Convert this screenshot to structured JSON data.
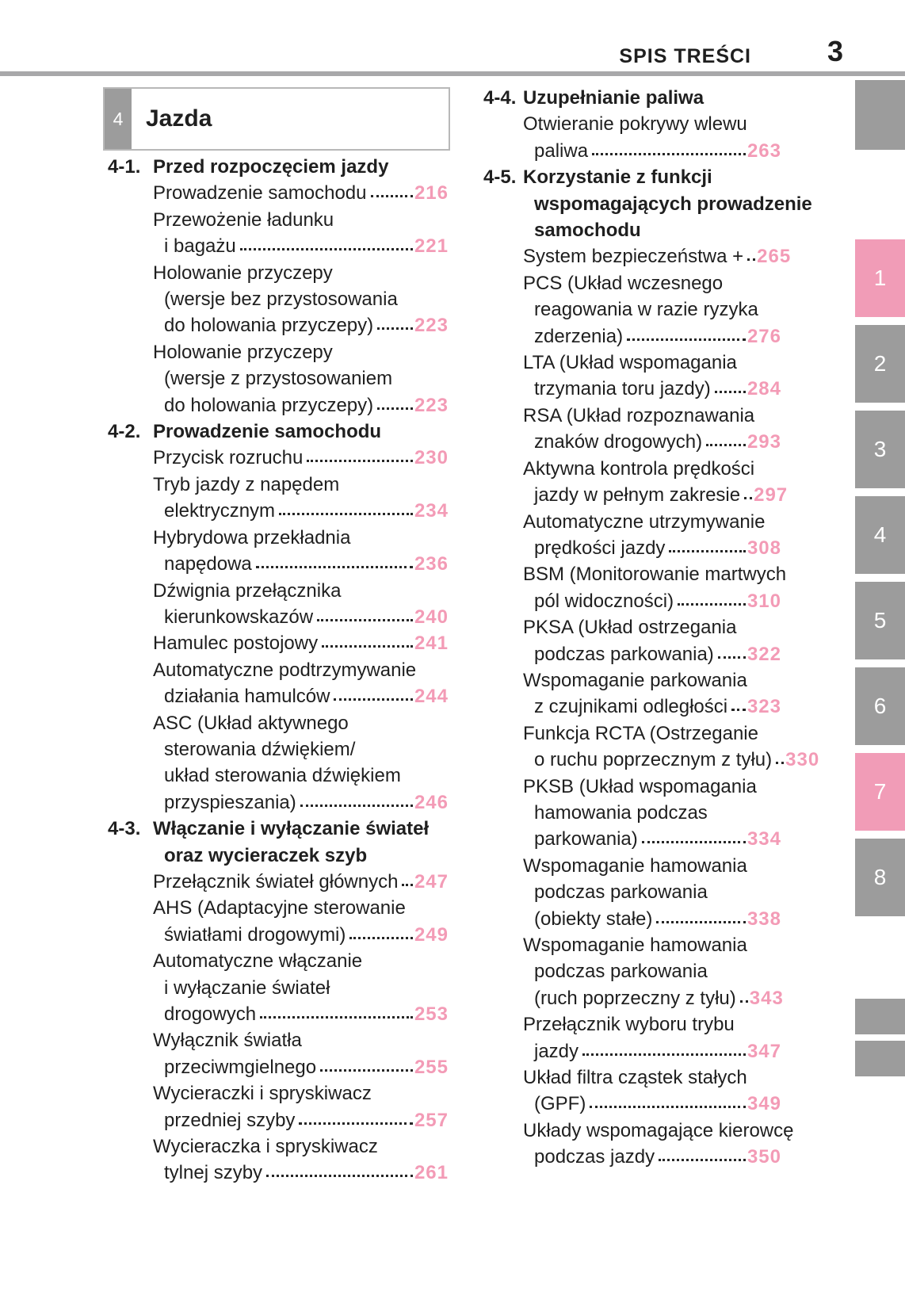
{
  "header": {
    "title": "SPIS TREŚCI",
    "page_number": "3"
  },
  "chapter_box": {
    "number": "4",
    "title": "Jazda"
  },
  "colors": {
    "page_number_pink": "#f39bb6",
    "active_tab_pink": "#f19cb7",
    "tab_gray": "#9c9c9c",
    "rule_gray": "#a8a8aa",
    "text": "#1f1f1f"
  },
  "toc": {
    "left_sections": [
      {
        "num": "4-1.",
        "title_lines": [
          "Przed rozpoczęciem jazdy"
        ],
        "entries": [
          {
            "lines": [
              "Prowadzenie samochodu"
            ],
            "page": "216"
          },
          {
            "lines": [
              "Przewożenie ładunku",
              "i bagażu"
            ],
            "page": "221"
          },
          {
            "lines": [
              "Holowanie przyczepy",
              "(wersje bez przystosowania",
              "do holowania przyczepy)"
            ],
            "page": "223"
          },
          {
            "lines": [
              "Holowanie przyczepy",
              "(wersje z przystosowaniem",
              "do holowania przyczepy)"
            ],
            "page": "223"
          }
        ]
      },
      {
        "num": "4-2.",
        "title_lines": [
          "Prowadzenie samochodu"
        ],
        "entries": [
          {
            "lines": [
              "Przycisk rozruchu"
            ],
            "page": "230"
          },
          {
            "lines": [
              "Tryb jazdy z napędem",
              "elektrycznym"
            ],
            "page": "234"
          },
          {
            "lines": [
              "Hybrydowa przekładnia",
              "napędowa"
            ],
            "page": "236"
          },
          {
            "lines": [
              "Dźwignia przełącznika",
              "kierunkowskazów"
            ],
            "page": "240"
          },
          {
            "lines": [
              "Hamulec postojowy"
            ],
            "page": "241"
          },
          {
            "lines": [
              "Automatyczne podtrzymywanie",
              "działania hamulców"
            ],
            "page": "244"
          },
          {
            "lines": [
              "ASC (Układ aktywnego",
              "sterowania dźwiękiem/",
              "układ sterowania dźwiękiem",
              "przyspieszania)"
            ],
            "page": "246"
          }
        ]
      },
      {
        "num": "4-3.",
        "title_lines": [
          "Włączanie i wyłączanie świateł",
          "oraz wycieraczek szyb"
        ],
        "entries": [
          {
            "lines": [
              "Przełącznik świateł głównych"
            ],
            "page": "247"
          },
          {
            "lines": [
              "AHS (Adaptacyjne sterowanie",
              "światłami drogowymi)"
            ],
            "page": "249"
          },
          {
            "lines": [
              "Automatyczne włączanie",
              "i wyłączanie świateł",
              "drogowych"
            ],
            "page": "253"
          },
          {
            "lines": [
              "Wyłącznik światła",
              "przeciwmgielnego"
            ],
            "page": "255"
          },
          {
            "lines": [
              "Wycieraczki i spryskiwacz",
              "przedniej szyby"
            ],
            "page": "257"
          },
          {
            "lines": [
              "Wycieraczka i spryskiwacz",
              "tylnej szyby"
            ],
            "page": "261"
          }
        ]
      }
    ],
    "right_sections": [
      {
        "num": "4-4.",
        "title_lines": [
          "Uzupełnianie paliwa"
        ],
        "entries": [
          {
            "lines": [
              "Otwieranie pokrywy wlewu",
              "paliwa"
            ],
            "page": "263"
          }
        ]
      },
      {
        "num": "4-5.",
        "title_lines": [
          "Korzystanie z funkcji",
          "wspomagających prowadzenie",
          "samochodu"
        ],
        "entries": [
          {
            "lines": [
              "System bezpieczeństwa +"
            ],
            "page": "265"
          },
          {
            "lines": [
              "PCS (Układ wczesnego",
              "reagowania w razie ryzyka",
              "zderzenia)"
            ],
            "page": "276"
          },
          {
            "lines": [
              "LTA (Układ wspomagania",
              "trzymania toru jazdy)"
            ],
            "page": "284"
          },
          {
            "lines": [
              "RSA (Układ rozpoznawania",
              "znaków drogowych)"
            ],
            "page": "293"
          },
          {
            "lines": [
              "Aktywna kontrola prędkości",
              "jazdy w pełnym zakresie"
            ],
            "page": "297"
          },
          {
            "lines": [
              "Automatyczne utrzymywanie",
              "prędkości jazdy"
            ],
            "page": "308"
          },
          {
            "lines": [
              "BSM (Monitorowanie martwych",
              "pól widoczności)"
            ],
            "page": "310"
          },
          {
            "lines": [
              "PKSA (Układ ostrzegania",
              "podczas parkowania)"
            ],
            "page": "322"
          },
          {
            "lines": [
              "Wspomaganie parkowania",
              "z czujnikami odległości"
            ],
            "page": "323"
          },
          {
            "lines": [
              "Funkcja RCTA (Ostrzeganie",
              "o ruchu poprzecznym z tyłu)"
            ],
            "page": "330"
          },
          {
            "lines": [
              "PKSB (Układ wspomagania",
              "hamowania podczas",
              "parkowania)"
            ],
            "page": "334"
          },
          {
            "lines": [
              "Wspomaganie hamowania",
              "podczas parkowania",
              "(obiekty stałe)"
            ],
            "page": "338"
          },
          {
            "lines": [
              "Wspomaganie hamowania",
              "podczas parkowania",
              "(ruch poprzeczny z tyłu)"
            ],
            "page": "343"
          },
          {
            "lines": [
              "Przełącznik wyboru trybu",
              "jazdy"
            ],
            "page": "347"
          },
          {
            "lines": [
              "Układ filtra cząstek stałych",
              "(GPF)"
            ],
            "page": "349"
          },
          {
            "lines": [
              "Układy wspomagające kierowcę",
              "podczas jazdy"
            ],
            "page": "350"
          }
        ]
      }
    ]
  },
  "side_tabs": {
    "tabs": [
      {
        "label": "1",
        "active": true
      },
      {
        "label": "2",
        "active": false
      },
      {
        "label": "3",
        "active": false
      },
      {
        "label": "4",
        "active": false
      },
      {
        "label": "5",
        "active": false
      },
      {
        "label": "6",
        "active": false
      },
      {
        "label": "7",
        "active": true
      },
      {
        "label": "8",
        "active": false
      }
    ]
  }
}
